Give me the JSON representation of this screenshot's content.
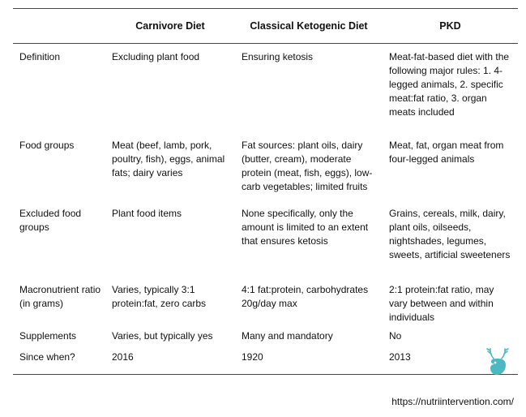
{
  "table": {
    "headers": [
      "",
      "Carnivore Diet",
      "Classical Ketogenic Diet",
      "PKD"
    ],
    "rows": [
      {
        "label": "Definition",
        "carnivore": "Excluding plant food",
        "keto": "Ensuring ketosis",
        "pkd": "Meat-fat-based diet with the following major rules: 1. 4-legged animals, 2. specific meat:fat ratio, 3. organ meats included"
      },
      {
        "label": "Food groups",
        "carnivore": "Meat (beef, lamb, pork, poultry, fish), eggs, animal fats; dairy varies",
        "keto": "Fat sources: plant oils, dairy (butter, cream), moderate protein (meat, fish, eggs), low-carb vegetables; limited fruits",
        "pkd": "Meat, fat, organ meat from four-legged animals"
      },
      {
        "label": "Excluded food groups",
        "carnivore": "Plant food items",
        "keto": "None specifically, only the amount is limited to an extent that ensures ketosis",
        "pkd": "Grains, cereals, milk, dairy, plant oils, oilseeds, nightshades, legumes, sweets, artificial sweeteners"
      },
      {
        "label": "Macronutrient ratio (in grams)",
        "carnivore": "Varies, typically 3:1 protein:fat, zero carbs",
        "keto": "4:1 fat:protein, carbohydrates 20g/day max",
        "pkd": "2:1 protein:fat ratio, may vary between and within individuals"
      },
      {
        "label": "Supplements",
        "carnivore": "Varies, but typically yes",
        "keto": "Many and mandatory",
        "pkd": "No"
      },
      {
        "label": "Since when?",
        "carnivore": "2016",
        "keto": "1920",
        "pkd": "2013"
      }
    ]
  },
  "logo": {
    "icon": "deer-head-logo-icon",
    "color": "#4bb8c4"
  },
  "source_url": "https://nutriintervention.com/"
}
